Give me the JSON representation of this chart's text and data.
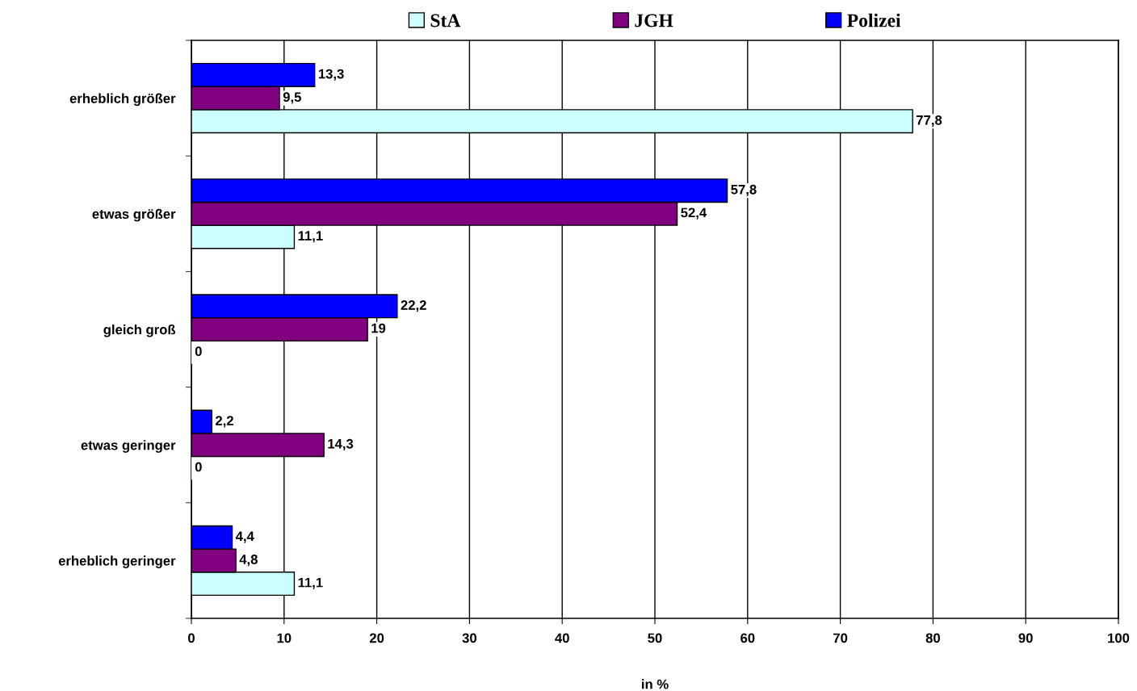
{
  "chart_data": {
    "type": "bar",
    "orientation": "horizontal",
    "xlabel": "in %",
    "categories": [
      "erheblich größer",
      "etwas größer",
      "gleich groß",
      "etwas geringer",
      "erheblich geringer"
    ],
    "series": [
      {
        "name": "StA",
        "color": "#ccffff",
        "values": [
          77.8,
          11.1,
          0,
          0,
          11.1
        ],
        "value_labels": [
          "77,8",
          "11,1",
          "0",
          "0",
          "11,1"
        ]
      },
      {
        "name": "JGH",
        "color": "#800080",
        "values": [
          9.5,
          52.4,
          19,
          14.3,
          4.8
        ],
        "value_labels": [
          "9,5",
          "52,4",
          "19",
          "14,3",
          "4,8"
        ]
      },
      {
        "name": "Polizei",
        "color": "#0000ff",
        "values": [
          13.3,
          57.8,
          22.2,
          2.2,
          4.4
        ],
        "value_labels": [
          "13,3",
          "57,8",
          "22,2",
          "2,2",
          "4,4"
        ]
      }
    ],
    "xlim": [
      0,
      100
    ],
    "xticks": [
      0,
      10,
      20,
      30,
      40,
      50,
      60,
      70,
      80,
      90,
      100
    ],
    "grid": "x",
    "legend": "top"
  }
}
